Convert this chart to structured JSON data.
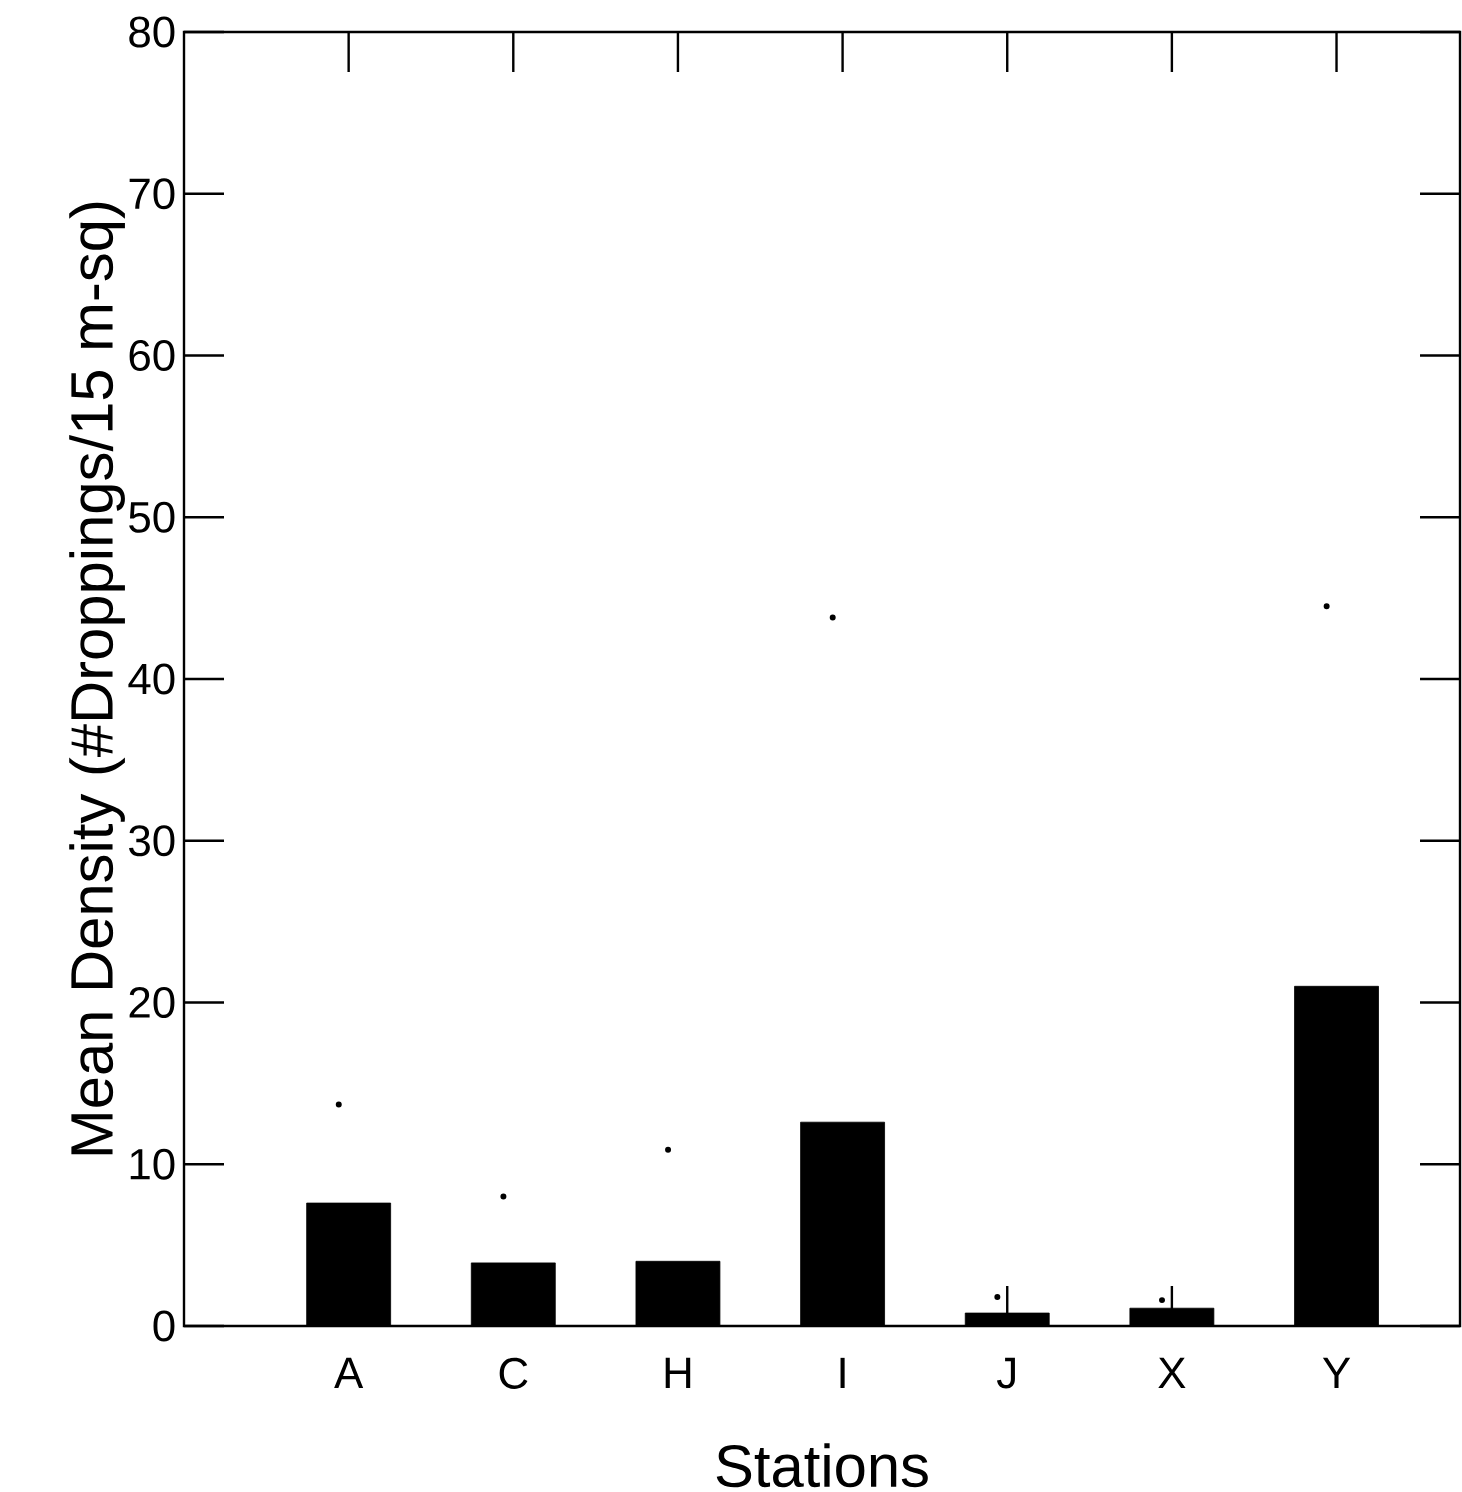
{
  "chart_data": {
    "type": "bar",
    "xlabel": "Stations",
    "ylabel": "Mean Density (#Droppings/15 m-sq)",
    "categories": [
      "A",
      "C",
      "H",
      "I",
      "J",
      "X",
      "Y"
    ],
    "series": [
      {
        "color": "#000000",
        "values": [
          7.6,
          3.9,
          4.0,
          12.6,
          0.8,
          1.1,
          21.0
        ]
      },
      {
        "type": "scatter",
        "color": "#000000",
        "x": [
          "A",
          "C",
          "H",
          "I",
          "J",
          "X",
          "Y"
        ],
        "values": [
          13.7,
          8.0,
          10.9,
          43.8,
          1.8,
          1.6,
          44.5
        ]
      }
    ],
    "ylim": [
      0,
      80
    ],
    "yticks": [
      0,
      10,
      20,
      30,
      40,
      50,
      60,
      70,
      80
    ],
    "grid": false
  }
}
